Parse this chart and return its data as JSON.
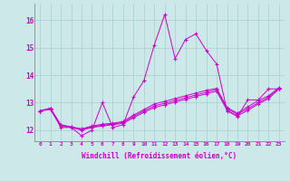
{
  "xlabel": "Windchill (Refroidissement éolien,°C)",
  "background_color": "#cce8e8",
  "line_color": "#cc00cc",
  "x_labels": [
    "0",
    "1",
    "2",
    "3",
    "4",
    "5",
    "6",
    "7",
    "8",
    "9",
    "10",
    "11",
    "12",
    "13",
    "14",
    "15",
    "16",
    "17",
    "18",
    "19",
    "20",
    "21",
    "22",
    "23"
  ],
  "ylim": [
    11.6,
    16.6
  ],
  "yticks": [
    12,
    13,
    14,
    15,
    16
  ],
  "series": [
    [
      12.7,
      12.8,
      12.1,
      12.1,
      11.8,
      12.0,
      13.0,
      12.1,
      12.2,
      13.2,
      13.8,
      15.1,
      16.2,
      14.6,
      15.3,
      15.5,
      14.9,
      14.4,
      12.7,
      12.5,
      13.1,
      13.1,
      13.5,
      13.5
    ],
    [
      12.7,
      12.75,
      12.15,
      12.1,
      12.0,
      12.1,
      12.15,
      12.2,
      12.25,
      12.45,
      12.65,
      12.82,
      12.92,
      13.02,
      13.12,
      13.22,
      13.32,
      13.42,
      12.72,
      12.52,
      12.72,
      12.95,
      13.15,
      13.5
    ],
    [
      12.7,
      12.78,
      12.18,
      12.12,
      12.02,
      12.12,
      12.18,
      12.22,
      12.28,
      12.5,
      12.7,
      12.88,
      12.98,
      13.08,
      13.18,
      13.28,
      13.38,
      13.48,
      12.78,
      12.58,
      12.78,
      13.0,
      13.2,
      13.52
    ],
    [
      12.7,
      12.8,
      12.2,
      12.12,
      12.05,
      12.15,
      12.22,
      12.25,
      12.32,
      12.55,
      12.75,
      12.95,
      13.05,
      13.15,
      13.25,
      13.35,
      13.45,
      13.52,
      12.82,
      12.62,
      12.85,
      13.08,
      13.25,
      13.55
    ]
  ]
}
